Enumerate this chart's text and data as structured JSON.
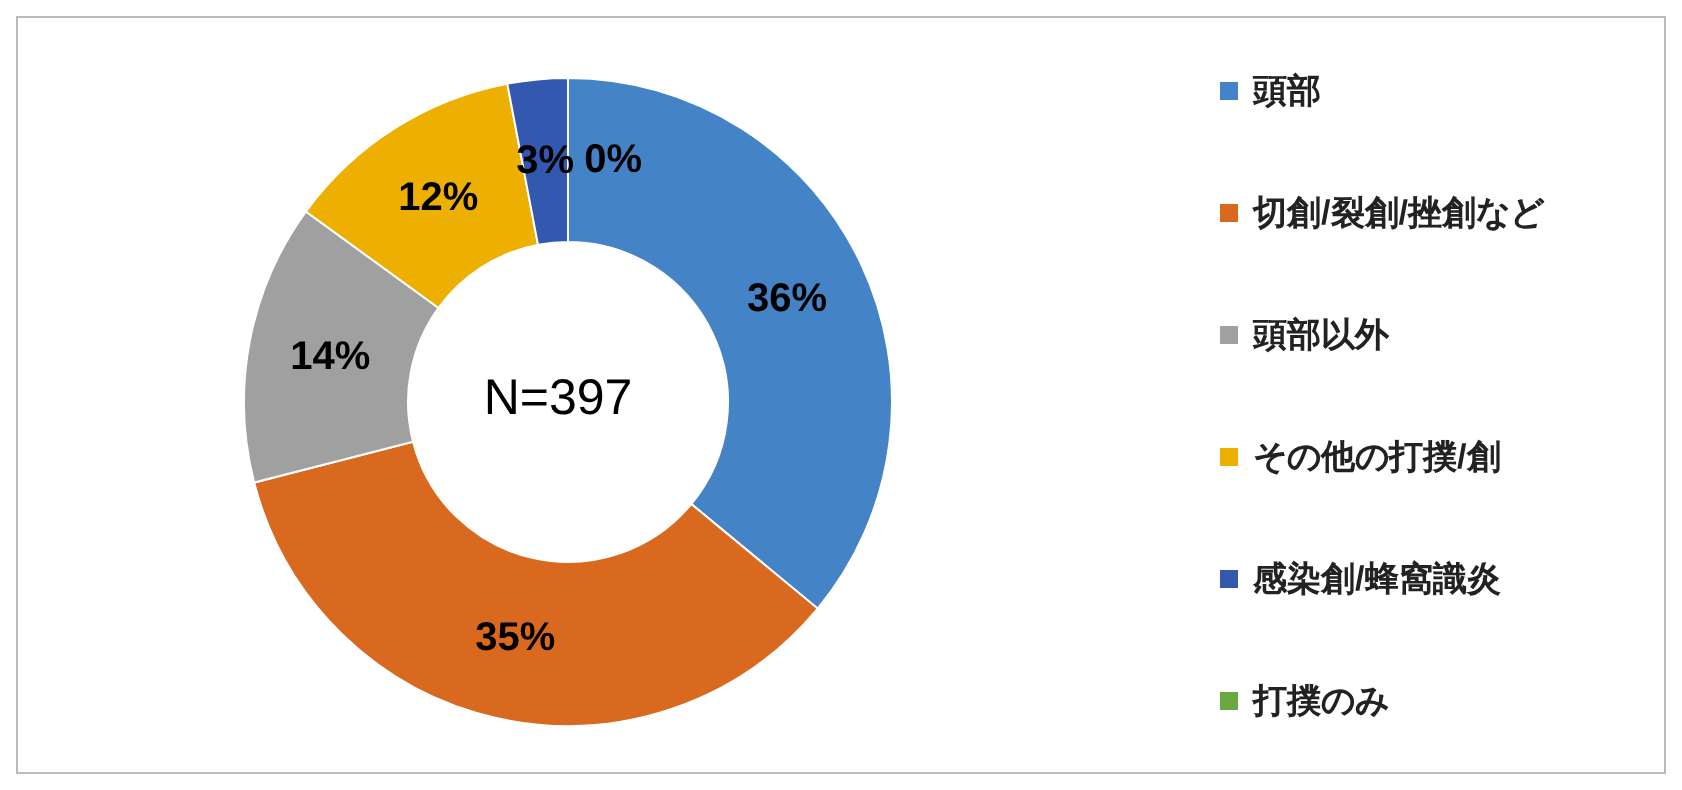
{
  "chart_data": {
    "type": "donut",
    "categories": [
      "頭部",
      "切創/裂創/挫創など",
      "頭部以外",
      "その他の打撲/創",
      "感染創/蜂窩識炎",
      "打撲のみ"
    ],
    "values": [
      36,
      35,
      14,
      12,
      3,
      0
    ],
    "colors": [
      "#4383c6",
      "#d8691e",
      "#a0a0a0",
      "#eeb000",
      "#3258b0",
      "#6aa842"
    ],
    "value_labels": [
      "36%",
      "35%",
      "14%",
      "12%",
      "3%",
      "0%"
    ],
    "legend": "right",
    "annotations": [
      "N=397"
    ]
  }
}
